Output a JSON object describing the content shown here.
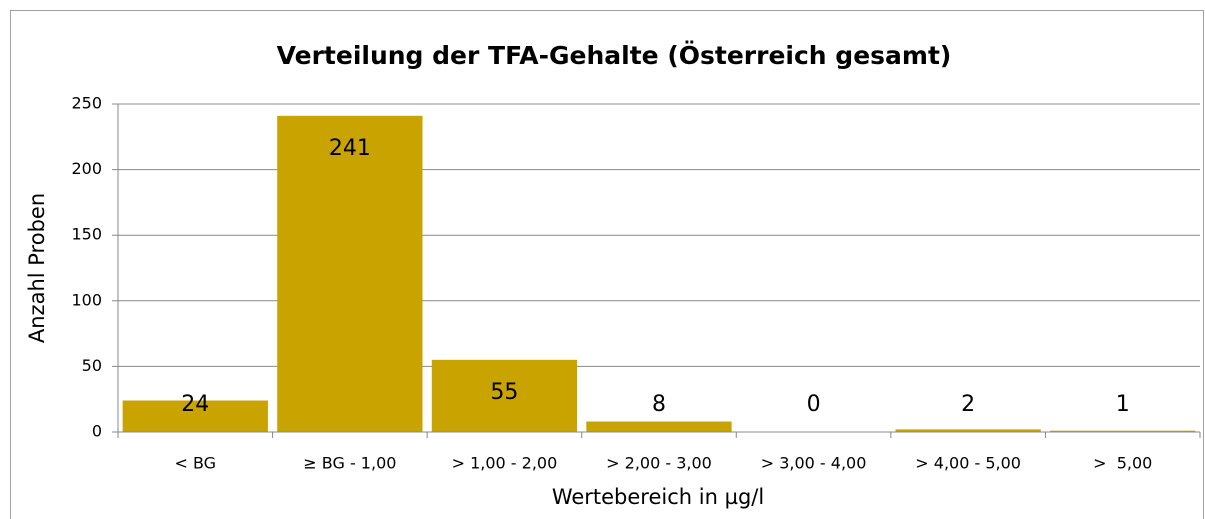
{
  "chart_data": {
    "type": "bar",
    "title": "Verteilung der TFA-Gehalte (Österreich gesamt)",
    "x_label": "Wertebereich in µg/l",
    "y_label": "Anzahl Proben",
    "categories": [
      "< BG",
      "≥ BG - 1,00",
      "> 1,00 - 2,00",
      "> 2,00 - 3,00",
      "> 3,00 - 4,00",
      "> 4,00 - 5,00",
      ">  5,00"
    ],
    "values": [
      24,
      241,
      55,
      8,
      0,
      2,
      1
    ],
    "color": "#c9a400",
    "ylim": [
      0,
      250
    ],
    "yticks": [
      0,
      50,
      100,
      150,
      200,
      250
    ],
    "grid": true
  }
}
